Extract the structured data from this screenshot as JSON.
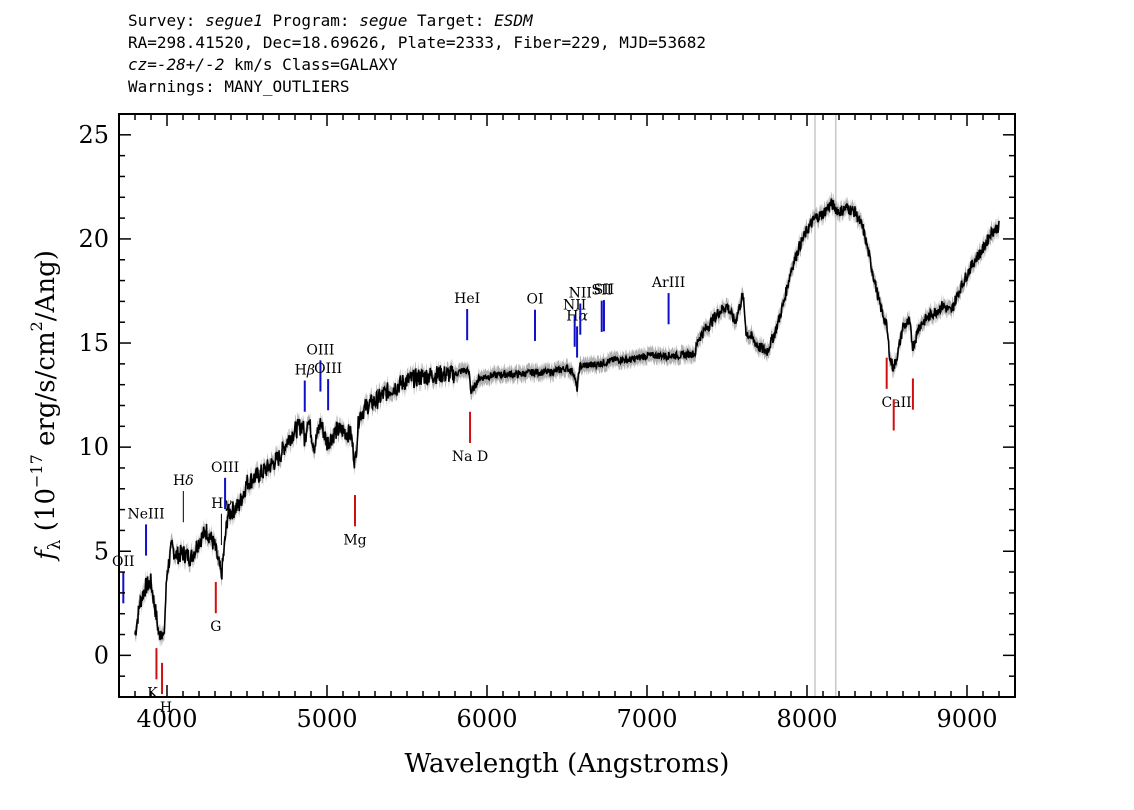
{
  "header": {
    "line1": "Survey: segue1 Program: segue Target: ESDM",
    "line2": "RA=298.41520, Dec=18.69626, Plate=2333, Fiber=229, MJD=53682",
    "line3": "cz=-28+/-2 km/s Class=GALAXY",
    "line4": "Warnings: MANY_OUTLIERS"
  },
  "chart_data": {
    "type": "line",
    "xlabel": "Wavelength (Angstroms)",
    "ylabel": "f_λ (10^-17 erg/s/cm^2/Ang)",
    "xlim": [
      3700,
      9300
    ],
    "ylim": [
      -2,
      26
    ],
    "x_ticks": [
      4000,
      5000,
      6000,
      7000,
      8000,
      9000
    ],
    "y_ticks": [
      0,
      5,
      10,
      15,
      20,
      25
    ],
    "grid": false,
    "colors": {
      "spectrum": "#000000",
      "error_band": "#b0b0b0",
      "emission_line": "#1010c8",
      "absorption_line": "#d01010",
      "mask_line": "#c8c8c8"
    },
    "series": [
      {
        "x": [
          3800,
          3830,
          3860,
          3880,
          3900,
          3920,
          3935,
          3950,
          3965,
          3980,
          4000,
          4030,
          4060,
          4100,
          4150,
          4200,
          4250,
          4300,
          4320,
          4340,
          4380,
          4450,
          4500,
          4600,
          4700,
          4750,
          4800,
          4850,
          4861,
          4880,
          4920,
          4960,
          5000,
          5060,
          5100,
          5150,
          5175,
          5200,
          5250,
          5300,
          5400,
          5500,
          5600,
          5700,
          5800,
          5850,
          5890,
          5900,
          5950,
          6000,
          6100,
          6200,
          6300,
          6400,
          6500,
          6540,
          6563,
          6580,
          6600,
          6700,
          6800,
          6900,
          7000,
          7100,
          7200,
          7300,
          7320,
          7400,
          7450,
          7500,
          7550,
          7600,
          7620,
          7650,
          7700,
          7750,
          7800,
          7850,
          7900,
          7950,
          8000,
          8050,
          8100,
          8150,
          8200,
          8250,
          8300,
          8350,
          8400,
          8450,
          8498,
          8520,
          8542,
          8570,
          8600,
          8640,
          8662,
          8700,
          8750,
          8800,
          8850,
          8900,
          8950,
          9000,
          9050,
          9100,
          9150,
          9200
        ],
        "y": [
          1.0,
          2.5,
          3.2,
          3.4,
          3.5,
          2.5,
          1.8,
          0.9,
          1.3,
          0.7,
          4.0,
          5.2,
          4.8,
          4.9,
          4.7,
          5.5,
          6.0,
          5.2,
          4.5,
          3.8,
          6.8,
          7.2,
          8.3,
          8.8,
          9.5,
          10.3,
          10.8,
          11.1,
          10.2,
          11.5,
          10.0,
          11.2,
          10.2,
          10.8,
          10.8,
          10.6,
          9.2,
          11.5,
          12.0,
          12.2,
          12.8,
          13.2,
          13.4,
          13.5,
          13.5,
          13.7,
          13.6,
          12.6,
          13.3,
          13.4,
          13.5,
          13.5,
          13.6,
          13.6,
          13.8,
          13.6,
          12.8,
          13.9,
          13.9,
          14.0,
          14.2,
          14.2,
          14.4,
          14.4,
          14.4,
          14.5,
          15.2,
          16.0,
          16.5,
          16.8,
          16.0,
          17.3,
          15.5,
          15.3,
          14.8,
          14.6,
          15.5,
          16.8,
          18.5,
          19.6,
          20.4,
          21.0,
          21.2,
          21.7,
          21.3,
          21.5,
          21.3,
          20.5,
          18.8,
          17.0,
          15.8,
          14.2,
          13.8,
          14.6,
          15.8,
          16.0,
          14.8,
          15.8,
          16.2,
          16.5,
          16.8,
          16.5,
          17.5,
          18.3,
          19.0,
          19.5,
          20.3,
          20.6
        ]
      }
    ],
    "line_markers": [
      {
        "label": "OII",
        "wavelength": 3727,
        "kind": "emission"
      },
      {
        "label": "NeIII",
        "wavelength": 3869,
        "kind": "emission"
      },
      {
        "label": "K",
        "wavelength": 3934,
        "kind": "absorption"
      },
      {
        "label": "H",
        "wavelength": 3969,
        "kind": "absorption"
      },
      {
        "label": "Hδ",
        "wavelength": 4102,
        "kind": "balmer"
      },
      {
        "label": "G",
        "wavelength": 4305,
        "kind": "absorption"
      },
      {
        "label": "Hγ",
        "wavelength": 4340,
        "kind": "balmer"
      },
      {
        "label": "OIII",
        "wavelength": 4363,
        "kind": "emission"
      },
      {
        "label": "Hβ",
        "wavelength": 4861,
        "kind": "emission"
      },
      {
        "label": "OIII",
        "wavelength": 4959,
        "kind": "emission"
      },
      {
        "label": "OIII",
        "wavelength": 5007,
        "kind": "emission"
      },
      {
        "label": "Mg",
        "wavelength": 5175,
        "kind": "absorption"
      },
      {
        "label": "HeI",
        "wavelength": 5876,
        "kind": "emission"
      },
      {
        "label": "Na D",
        "wavelength": 5894,
        "kind": "absorption"
      },
      {
        "label": "OI",
        "wavelength": 6300,
        "kind": "emission"
      },
      {
        "label": "NII",
        "wavelength": 6548,
        "kind": "emission"
      },
      {
        "label": "Hα",
        "wavelength": 6563,
        "kind": "emission"
      },
      {
        "label": "NII",
        "wavelength": 6583,
        "kind": "emission"
      },
      {
        "label": "SII",
        "wavelength": 6717,
        "kind": "emission"
      },
      {
        "label": "SII",
        "wavelength": 6731,
        "kind": "emission"
      },
      {
        "label": "ArIII",
        "wavelength": 7135,
        "kind": "emission"
      },
      {
        "label": "CaII",
        "wavelength": 8498,
        "kind": "absorption"
      },
      {
        "label": "CaII",
        "wavelength": 8542,
        "kind": "absorption"
      },
      {
        "label": "CaII",
        "wavelength": 8662,
        "kind": "absorption"
      }
    ],
    "mask_lines": [
      8050,
      8180
    ]
  }
}
